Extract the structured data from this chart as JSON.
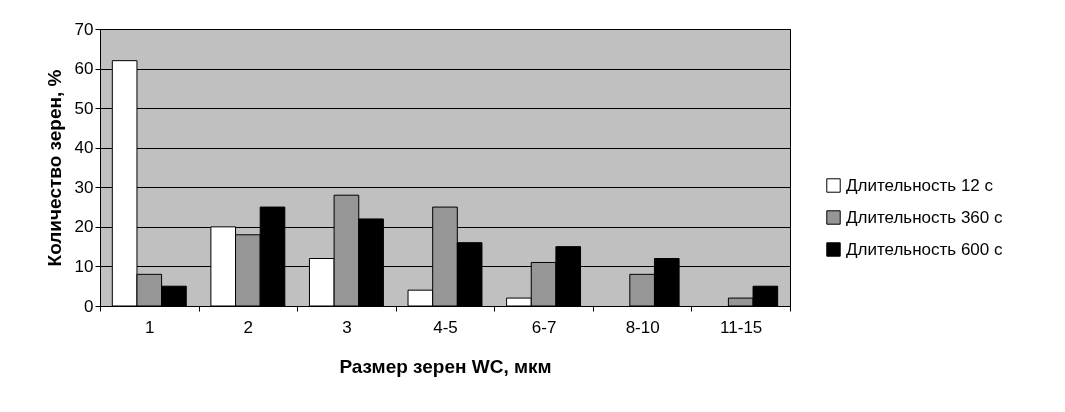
{
  "chart_data": {
    "type": "bar",
    "xlabel": "Размер зерен WC, мкм",
    "ylabel": "Количество зерен, %",
    "categories": [
      "1",
      "2",
      "3",
      "4-5",
      "6-7",
      "8-10",
      "11-15"
    ],
    "series": [
      {
        "name": "Длительность 12 с",
        "color": "#ffffff",
        "values": [
          62,
          20,
          12,
          4,
          2,
          null,
          null
        ]
      },
      {
        "name": "Длительность 360 с",
        "color": "#969696",
        "values": [
          8,
          18,
          28,
          25,
          11,
          8,
          2
        ]
      },
      {
        "name": "Длительность 600 с",
        "color": "#000000",
        "values": [
          5,
          25,
          22,
          16,
          15,
          12,
          5
        ]
      }
    ],
    "ylim": [
      0,
      70
    ],
    "yticks": [
      0,
      10,
      20,
      30,
      40,
      50,
      60,
      70
    ],
    "grid": "y",
    "legend": "right"
  }
}
